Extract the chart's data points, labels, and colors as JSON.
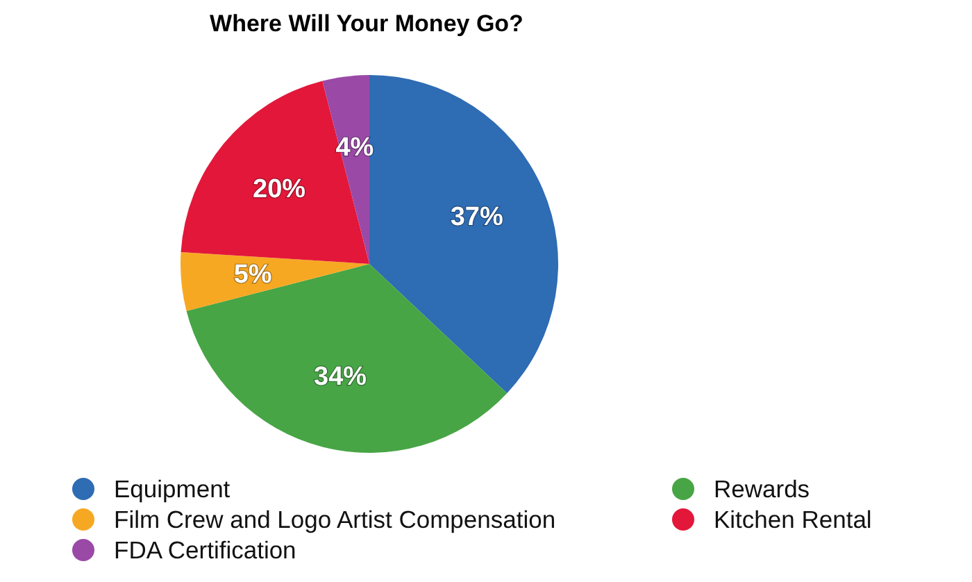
{
  "chart_data": {
    "type": "pie",
    "title": "Where Will Your Money Go?",
    "categories": [
      "Equipment",
      "Rewards",
      "Film Crew and Logo Artist Compensation",
      "Kitchen Rental",
      "FDA Certification"
    ],
    "values": [
      37,
      34,
      5,
      20,
      4
    ],
    "colors": [
      "#2e6cb3",
      "#47a545",
      "#f7a823",
      "#e3173a",
      "#9a4aa6"
    ],
    "value_labels": [
      "37%",
      "34%",
      "5%",
      "20%",
      "4%"
    ],
    "legend": "bottom"
  }
}
